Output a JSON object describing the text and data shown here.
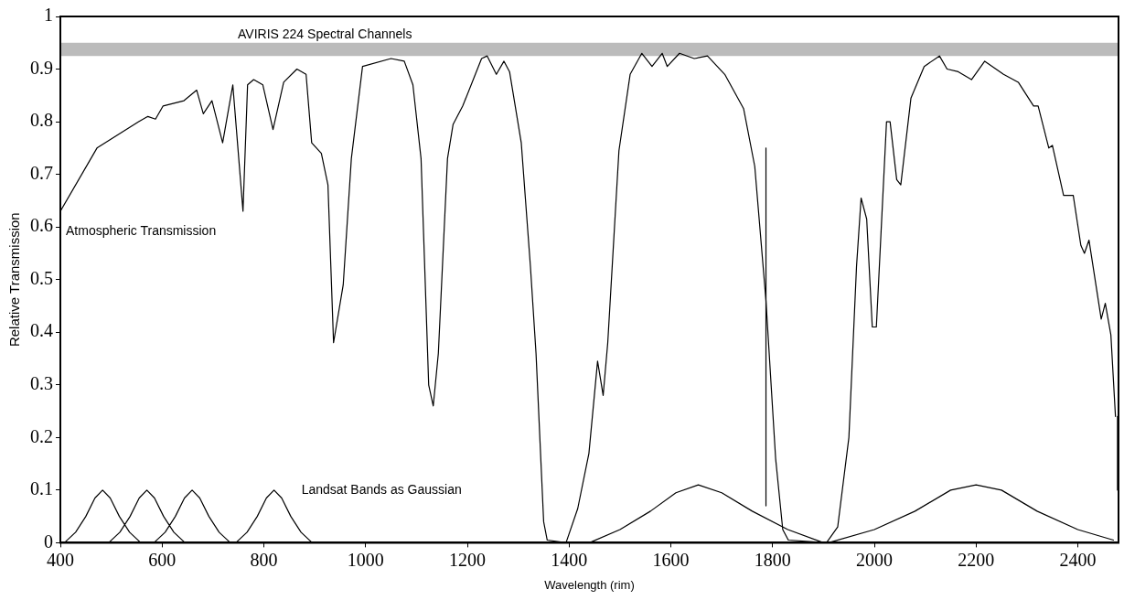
{
  "chart_data": {
    "type": "line",
    "xlabel": "Wavelength (rim)",
    "ylabel": "Relative Transmission",
    "xlim": [
      400,
      2480
    ],
    "ylim": [
      0,
      1
    ],
    "xticks": [
      400,
      600,
      800,
      1000,
      1200,
      1400,
      1600,
      1800,
      2000,
      2200,
      2400
    ],
    "yticks": [
      0,
      0.1,
      0.2,
      0.3,
      0.4,
      0.5,
      0.6,
      0.7,
      0.8,
      0.9,
      1
    ],
    "grid": false,
    "legend": false,
    "marker": "none",
    "line_style": "solid",
    "bands": [
      {
        "axis": "y",
        "from": 0.925,
        "to": 0.95,
        "label": "AVIRIS 224 Spectral Channels",
        "color": "#bbbbbb"
      }
    ],
    "series": [
      {
        "name": "Atmospheric Transmission",
        "color": "#000000",
        "x": [
          400,
          472,
          554,
          572,
          587,
          602,
          643,
          668,
          681,
          698,
          719,
          739,
          759,
          768,
          780,
          798,
          818,
          839,
          865,
          883,
          894,
          913,
          926,
          937,
          956,
          972,
          994,
          1050,
          1076,
          1093,
          1109,
          1124,
          1133,
          1143,
          1161,
          1172,
          1191,
          1228,
          1239,
          1257,
          1272,
          1283,
          1306,
          1324,
          1335,
          1350,
          1357,
          1394,
          1417,
          1439,
          1456,
          1467,
          1476,
          1498,
          1520,
          1543,
          1563,
          1583,
          1593,
          1617,
          1646,
          1672,
          1706,
          1743,
          1765,
          1787,
          1806,
          1820,
          1831,
          1906,
          1928,
          1950,
          1965,
          1974,
          1985,
          1996,
          2004,
          2024,
          2031,
          2044,
          2052,
          2072,
          2098,
          2128,
          2143,
          2165,
          2191,
          2217,
          2254,
          2283,
          2313,
          2322,
          2343,
          2350,
          2372,
          2391,
          2406,
          2413,
          2422,
          2446,
          2454,
          2465,
          2474
        ],
        "values": [
          0.63,
          0.75,
          0.8,
          0.81,
          0.805,
          0.83,
          0.84,
          0.86,
          0.815,
          0.84,
          0.76,
          0.87,
          0.63,
          0.87,
          0.88,
          0.87,
          0.785,
          0.875,
          0.9,
          0.89,
          0.76,
          0.74,
          0.68,
          0.38,
          0.49,
          0.73,
          0.905,
          0.92,
          0.915,
          0.87,
          0.73,
          0.3,
          0.26,
          0.36,
          0.73,
          0.795,
          0.83,
          0.92,
          0.925,
          0.89,
          0.915,
          0.895,
          0.76,
          0.525,
          0.36,
          0.04,
          0.005,
          0,
          0.065,
          0.17,
          0.345,
          0.28,
          0.38,
          0.745,
          0.89,
          0.93,
          0.905,
          0.93,
          0.905,
          0.93,
          0.92,
          0.925,
          0.89,
          0.825,
          0.715,
          0.46,
          0.16,
          0.025,
          0.005,
          0,
          0.03,
          0.2,
          0.525,
          0.655,
          0.615,
          0.41,
          0.41,
          0.8,
          0.8,
          0.69,
          0.68,
          0.845,
          0.905,
          0.925,
          0.9,
          0.895,
          0.88,
          0.915,
          0.89,
          0.875,
          0.83,
          0.83,
          0.75,
          0.755,
          0.66,
          0.66,
          0.565,
          0.55,
          0.575,
          0.425,
          0.455,
          0.395,
          0.24
        ]
      },
      {
        "name": "Landsat Bands as Gaussian",
        "color": "#000000",
        "x": [
          408,
          430,
          450,
          468,
          483,
          498,
          516,
          536,
          558,
          null,
          495,
          517,
          537,
          555,
          570,
          585,
          603,
          623,
          645,
          null,
          584,
          606,
          626,
          644,
          659,
          674,
          692,
          712,
          734,
          null,
          745,
          767,
          787,
          805,
          820,
          835,
          853,
          873,
          895,
          null,
          1440,
          1500,
          1560,
          1610,
          1654,
          1700,
          1760,
          1830,
          1900,
          null,
          1910,
          2000,
          2080,
          2150,
          2200,
          2250,
          2320,
          2400,
          2470
        ],
        "values": [
          0,
          0.02,
          0.05,
          0.085,
          0.1,
          0.085,
          0.05,
          0.02,
          0,
          null,
          0,
          0.02,
          0.05,
          0.085,
          0.1,
          0.085,
          0.05,
          0.02,
          0,
          null,
          0,
          0.02,
          0.05,
          0.085,
          0.1,
          0.085,
          0.05,
          0.02,
          0,
          null,
          0,
          0.02,
          0.05,
          0.085,
          0.1,
          0.085,
          0.05,
          0.02,
          0,
          null,
          0,
          0.025,
          0.06,
          0.095,
          0.11,
          0.095,
          0.06,
          0.025,
          0,
          null,
          0,
          0.025,
          0.06,
          0.1,
          0.11,
          0.1,
          0.06,
          0.025,
          0.005
        ]
      },
      {
        "color": "#000000",
        "x": [
          1787,
          1787
        ],
        "values": [
          0.07,
          0.75
        ]
      },
      {
        "color": "#000000",
        "x": [
          2478,
          2478
        ],
        "values": [
          0.1,
          0.24
        ]
      }
    ]
  }
}
